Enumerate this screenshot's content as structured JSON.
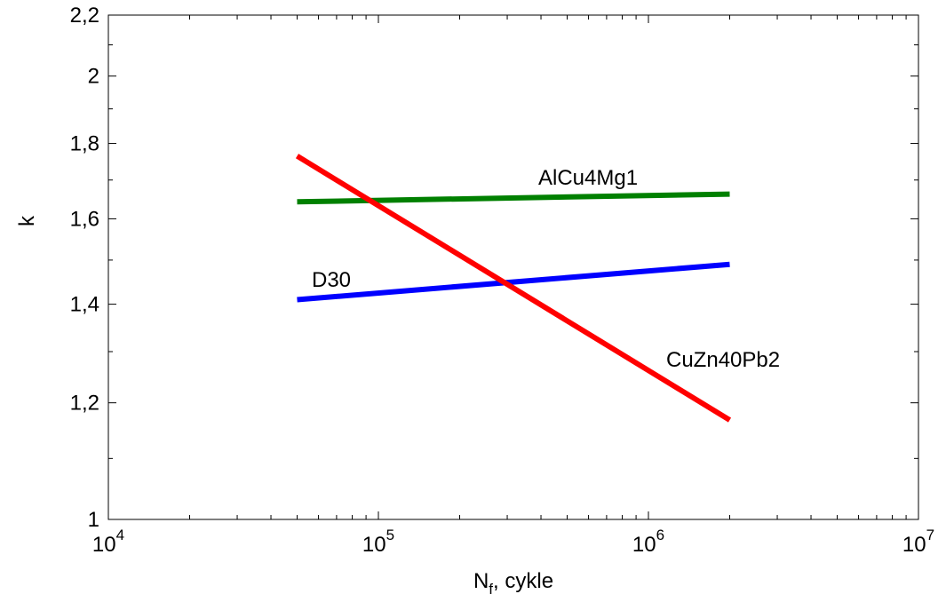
{
  "chart_data": {
    "type": "line",
    "xlabel": "N",
    "xlabel_subscript": "f",
    "xlabel_suffix": ", cykle",
    "ylabel": "k",
    "x_scale": "log",
    "y_scale": "log",
    "xlim": [
      10000,
      10000000
    ],
    "ylim": [
      1,
      2.2
    ],
    "x_ticks": [
      {
        "value": 10000,
        "base": "10",
        "exp": "4"
      },
      {
        "value": 100000,
        "base": "10",
        "exp": "5"
      },
      {
        "value": 1000000,
        "base": "10",
        "exp": "6"
      },
      {
        "value": 10000000,
        "base": "10",
        "exp": "7"
      }
    ],
    "y_ticks": [
      {
        "value": 1,
        "label": "1"
      },
      {
        "value": 1.2,
        "label": "1,2"
      },
      {
        "value": 1.4,
        "label": "1,4"
      },
      {
        "value": 1.6,
        "label": "1,6"
      },
      {
        "value": 1.8,
        "label": "1,8"
      },
      {
        "value": 2,
        "label": "2"
      },
      {
        "value": 2.2,
        "label": "2,2"
      }
    ],
    "grid": false,
    "legend": "none",
    "series": [
      {
        "name": "AlCu4Mg1",
        "color": "#008000",
        "x": [
          50000,
          2000000
        ],
        "y": [
          1.643,
          1.663
        ]
      },
      {
        "name": "D30",
        "color": "#0000ff",
        "x": [
          50000,
          2000000
        ],
        "y": [
          1.41,
          1.49
        ]
      },
      {
        "name": "CuZn40Pb2",
        "color": "#ff0000",
        "x": [
          50000,
          2000000
        ],
        "y": [
          1.765,
          1.168
        ]
      }
    ],
    "annotations": [
      {
        "text": "AlCu4Mg1",
        "series": "AlCu4Mg1"
      },
      {
        "text": "D30",
        "series": "D30"
      },
      {
        "text": "CuZn40Pb2",
        "series": "CuZn40Pb2"
      }
    ]
  }
}
